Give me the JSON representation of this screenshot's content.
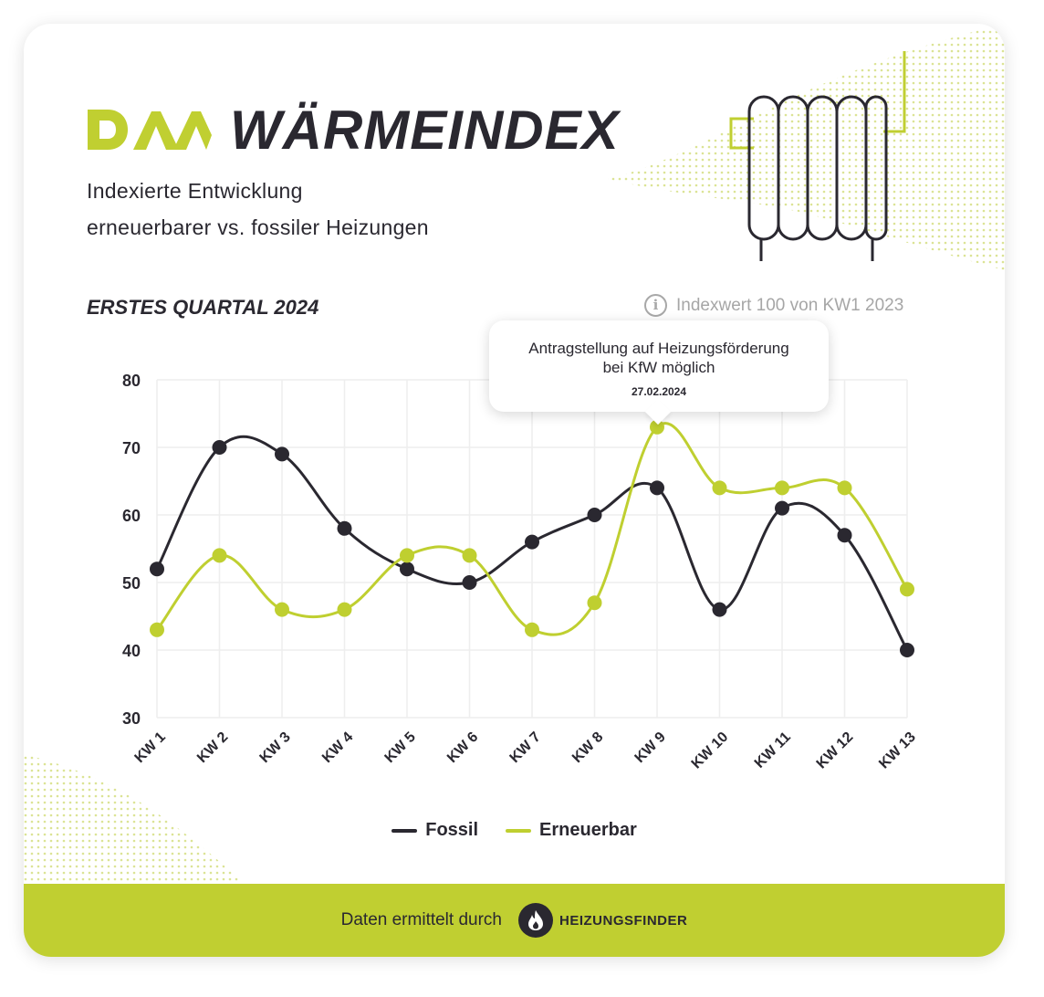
{
  "brand": {
    "logo_text": "DAA",
    "title": "WÄRMEINDEX"
  },
  "subtitle": {
    "line1": "Indexierte Entwicklung",
    "line2": "erneuerbarer vs. fossiler Heizungen"
  },
  "period": "ERSTES QUARTAL 2024",
  "info": {
    "icon": "info-icon",
    "text": "Indexwert 100 von KW1 2023"
  },
  "tooltip": {
    "line1": "Antragstellung auf Heizungsförderung",
    "line2": "bei KfW möglich",
    "date": "27.02.2024"
  },
  "colors": {
    "accent": "#c0cf31",
    "dark": "#2a2830",
    "fossil": "#2a2830",
    "renewable": "#bfcf30"
  },
  "chart_data": {
    "type": "line",
    "title": "",
    "xlabel": "",
    "ylabel": "",
    "categories": [
      "KW 1",
      "KW 2",
      "KW 3",
      "KW 4",
      "KW 5",
      "KW 6",
      "KW 7",
      "KW 8",
      "KW 9",
      "KW 10",
      "KW 11",
      "KW 12",
      "KW 13"
    ],
    "ylim": [
      30,
      80
    ],
    "yticks": [
      30,
      40,
      50,
      60,
      70,
      80
    ],
    "grid": true,
    "legend_position": "bottom-center",
    "series": [
      {
        "name": "Fossil",
        "color": "#2a2830",
        "values": [
          52,
          70,
          69,
          58,
          52,
          50,
          56,
          60,
          64,
          46,
          61,
          57,
          40
        ]
      },
      {
        "name": "Erneuerbar",
        "color": "#bfcf30",
        "values": [
          43,
          54,
          46,
          46,
          54,
          54,
          43,
          47,
          73,
          64,
          64,
          64,
          49
        ]
      }
    ],
    "annotation": {
      "category": "KW 9",
      "series": "Erneuerbar"
    }
  },
  "footer": {
    "text": "Daten ermittelt durch",
    "partner": "HEIZUNGSFINDER",
    "partner_icon": "flame-icon"
  }
}
